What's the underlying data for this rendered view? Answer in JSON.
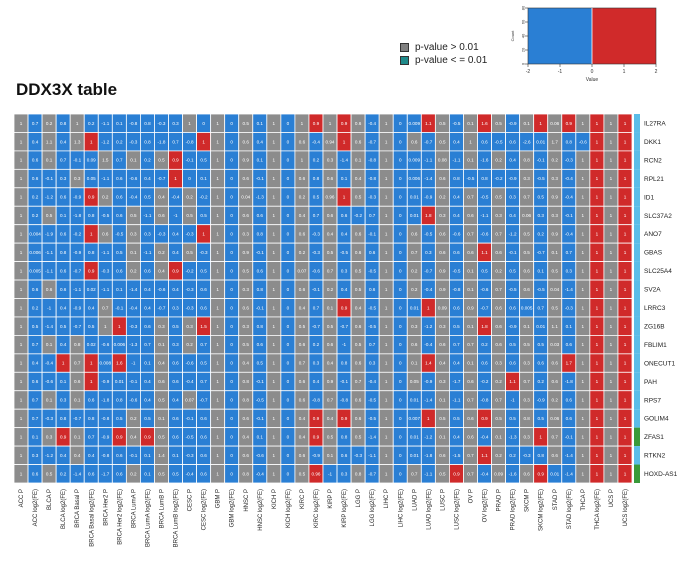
{
  "title": "DDX3X table",
  "legend": {
    "items": [
      {
        "label": "p-value > 0.01",
        "color": "#808080"
      },
      {
        "label": "p-value < = 0.01",
        "color": "#1f8a8a"
      }
    ]
  },
  "color_key": {
    "xlabel": "Value",
    "ylabel": "Count",
    "ticks": [
      "-2",
      "-1",
      "0",
      "1",
      "2"
    ],
    "yticks": [
      "0",
      "20",
      "40",
      "60",
      "80"
    ],
    "low_color": "#2a7fd4",
    "high_color": "#d02a2a"
  },
  "chart_data": {
    "type": "heatmap",
    "columns": [
      "ACC P",
      "ACC log2(FE)",
      "BLCA P",
      "BLCA log2(FE)",
      "BRCA Basal P",
      "BRCA Basal log2(FE)",
      "BRCA Her2 P",
      "BRCA Her2 log2(FE)",
      "BRCA LumA P",
      "BRCA LumA log2(FE)",
      "BRCA LumB P",
      "BRCA LumB log2(FE)",
      "CESC P",
      "CESC log2(FE)",
      "GBM P",
      "GBM log2(FE)",
      "HNSC P",
      "HNSC log2(FE)",
      "KICH P",
      "KICH log2(FE)",
      "KIRC P",
      "KIRC log2(FE)",
      "KIRP P",
      "KIRP log2(FE)",
      "LGG P",
      "LGG log2(FE)",
      "LIHC P",
      "LIHC log2(FE)",
      "LUAD P",
      "LUAD log2(FE)",
      "LUSC P",
      "LUSC log2(FE)",
      "OV P",
      "OV log2(FE)",
      "PRAD P",
      "PRAD log2(FE)",
      "SKCM P",
      "SKCM log2(FE)",
      "STAD P",
      "STAD log2(FE)",
      "THCA P",
      "THCA log2(FE)",
      "UCS P",
      "UCS log2(FE)"
    ],
    "rows": [
      "IL27RA",
      "DKK1",
      "RCN2",
      "RPL21",
      "ID1",
      "SLC37A2",
      "ANO7",
      "GBAS",
      "SLC25A4",
      "SV2A",
      "LRRC3",
      "ZG16B",
      "FBLIM1",
      "ONECUT1",
      "PAH",
      "RPS7",
      "GOLIM4",
      "ZFAS1",
      "RTKN2",
      "HOXD-AS1"
    ],
    "row_group_colors": [
      "#5bbde8",
      "#5bbde8",
      "#5bbde8",
      "#5bbde8",
      "#5bbde8",
      "#5bbde8",
      "#5bbde8",
      "#5bbde8",
      "#5bbde8",
      "#5bbde8",
      "#5bbde8",
      "#5bbde8",
      "#5bbde8",
      "#5bbde8",
      "#5bbde8",
      "#5bbde8",
      "#5bbde8",
      "#3a9a3a",
      "#5bbde8",
      "#3a9a3a"
    ],
    "cells": [
      [
        "1",
        "0.7",
        "0.2",
        "0.8",
        "1",
        "0.2",
        "-1.1",
        "0.1",
        "-0.8",
        "0.8",
        "-0.3",
        "0.3",
        "1",
        "0",
        "1",
        "0",
        "0.5",
        "0.1",
        "1",
        "0",
        "1",
        "0.9",
        "1",
        "0.9",
        "0.6",
        "-0.4",
        "1",
        "0",
        "0.009",
        "1.1",
        "0.5",
        "-0.5",
        "0.1",
        "1.6",
        "0.5",
        "-0.9",
        "0.1",
        "1",
        "0.06",
        "0.9",
        "1",
        "1",
        "1",
        "1"
      ],
      [
        "1",
        "0.4",
        "1.1",
        "0.4",
        "1.3",
        "1",
        "-1.2",
        "0.2",
        "-0.3",
        "0.8",
        "-1.8",
        "0.7",
        "-0.8",
        "1",
        "1",
        "0",
        "0.6",
        "0.4",
        "1",
        "0",
        "0.6",
        "-0.4",
        "0.94",
        "1",
        "0.6",
        "-0.7",
        "1",
        "0",
        "0.6",
        "-0.7",
        "0.5",
        "0.4",
        "1",
        "0.6",
        "-0.5",
        "0.6",
        "-2.6",
        "0.01",
        "1.7",
        "0.8",
        "-0.6",
        "1",
        "1",
        "1"
      ],
      [
        "1",
        "0.6",
        "0.1",
        "0.7",
        "-0.1",
        "0.09",
        "1.5",
        "0.7",
        "0.1",
        "0.2",
        "0.5",
        "0.9",
        "-0.1",
        "0.5",
        "1",
        "0",
        "0.9",
        "0.1",
        "1",
        "0",
        "1",
        "0.2",
        "0.3",
        "-1.4",
        "0.1",
        "-0.8",
        "1",
        "0",
        "0.009",
        "-1.1",
        "0.08",
        "-1.1",
        "0.1",
        "-1.6",
        "0.2",
        "0.4",
        "0.8",
        "-0.1",
        "0.2",
        "-0.3",
        "1",
        "1",
        "1",
        "1"
      ],
      [
        "1",
        "0.6",
        "-0.1",
        "0.3",
        "0.3",
        "0.05",
        "-1.1",
        "0.6",
        "-0.6",
        "0.4",
        "-0.7",
        "1",
        "0",
        "0.1",
        "1",
        "0",
        "0.6",
        "-0.1",
        "1",
        "0",
        "0.6",
        "0.8",
        "0.6",
        "0.1",
        "0.4",
        "-0.8",
        "1",
        "0",
        "0.006",
        "-1.4",
        "0.6",
        "0.8",
        "-0.5",
        "0.8",
        "-0.2",
        "-0.9",
        "0.3",
        "-0.5",
        "0.3",
        "-0.4",
        "1",
        "1",
        "1",
        "1"
      ],
      [
        "1",
        "0.2",
        "-1.2",
        "0.6",
        "-0.9",
        "0.9",
        "0.2",
        "0.6",
        "-0.4",
        "0.5",
        "0.4",
        "-0.4",
        "0.2",
        "-0.2",
        "1",
        "0",
        "0.04",
        "-1.3",
        "1",
        "0",
        "0.2",
        "0.5",
        "0.96",
        "1",
        "0.5",
        "-0.3",
        "1",
        "0",
        "0.01",
        "-0.9",
        "0.2",
        "0.4",
        "0.7",
        "-0.5",
        "0.5",
        "0.3",
        "0.7",
        "0.5",
        "0.9",
        "-0.4",
        "1",
        "1",
        "1",
        "1"
      ],
      [
        "1",
        "0.2",
        "0.5",
        "0.1",
        "-1.8",
        "0.8",
        "-0.5",
        "0.6",
        "0.5",
        "-1.1",
        "0.6",
        "-1",
        "0.5",
        "0.5",
        "1",
        "0",
        "0.6",
        "0.6",
        "1",
        "0",
        "0.4",
        "0.7",
        "0.6",
        "0.6",
        "-0.2",
        "0.7",
        "1",
        "0",
        "0.01",
        "1.8",
        "0.3",
        "0.4",
        "0.6",
        "-1.1",
        "0.3",
        "0.4",
        "0.06",
        "0.3",
        "0.3",
        "-0.1",
        "1",
        "1",
        "1",
        "1"
      ],
      [
        "1",
        "0.004",
        "-1.9",
        "0.6",
        "-0.2",
        "1",
        "0.6",
        "-0.5",
        "0.3",
        "0.3",
        "-0.3",
        "0.4",
        "-0.3",
        "1",
        "1",
        "0",
        "0.3",
        "0.8",
        "1",
        "0",
        "0.6",
        "-0.3",
        "0.4",
        "0.4",
        "0.6",
        "-0.1",
        "1",
        "0",
        "0.6",
        "-0.5",
        "0.6",
        "-0.6",
        "0.7",
        "-0.6",
        "0.7",
        "-1.2",
        "0.5",
        "0.2",
        "0.9",
        "-0.4",
        "1",
        "1",
        "1",
        "1"
      ],
      [
        "1",
        "0.006",
        "-1.1",
        "0.8",
        "-0.9",
        "0.8",
        "-1.1",
        "0.5",
        "0.1",
        "-1.1",
        "0.2",
        "0.4",
        "0.5",
        "-0.3",
        "1",
        "0",
        "0.9",
        "-0.1",
        "1",
        "0",
        "0.2",
        "-0.3",
        "0.5",
        "-0.5",
        "0.6",
        "0.6",
        "1",
        "0",
        "0.7",
        "0.3",
        "0.6",
        "0.6",
        "0.6",
        "1.1",
        "0.6",
        "-0.1",
        "0.5",
        "-0.7",
        "0.1",
        "0.7",
        "1",
        "1",
        "1",
        "1"
      ],
      [
        "1",
        "0.005",
        "-1.1",
        "0.6",
        "-0.7",
        "0.9",
        "-0.3",
        "0.6",
        "0.2",
        "0.6",
        "0.4",
        "0.9",
        "-0.2",
        "0.5",
        "1",
        "0",
        "0.5",
        "0.6",
        "1",
        "0",
        "0.07",
        "-0.6",
        "0.7",
        "0.3",
        "0.5",
        "-0.5",
        "1",
        "0",
        "0.2",
        "-0.7",
        "0.9",
        "-0.5",
        "0.1",
        "0.5",
        "0.2",
        "0.5",
        "0.6",
        "0.1",
        "0.5",
        "0.3",
        "1",
        "1",
        "1",
        "1"
      ],
      [
        "1",
        "0.6",
        "0.6",
        "0.6",
        "-1.1",
        "0.02",
        "-1.1",
        "0.1",
        "-1.4",
        "0.4",
        "-0.6",
        "0.4",
        "-0.3",
        "0.6",
        "1",
        "0",
        "0.3",
        "0.8",
        "1",
        "0",
        "0.6",
        "-0.1",
        "0.2",
        "0.4",
        "0.5",
        "0.6",
        "1",
        "0",
        "0.2",
        "-0.4",
        "0.9",
        "-0.8",
        "0.1",
        "-0.6",
        "0.7",
        "-0.5",
        "0.6",
        "-0.5",
        "0.04",
        "-1.4",
        "1",
        "1",
        "1",
        "1"
      ],
      [
        "1",
        "0.2",
        "-1",
        "0.4",
        "-0.9",
        "0.4",
        "0.7",
        "-0.1",
        "-0.4",
        "0.4",
        "-0.7",
        "0.3",
        "-0.3",
        "0.6",
        "1",
        "0",
        "0.6",
        "-0.1",
        "1",
        "0",
        "0.4",
        "0.7",
        "0.1",
        "0.9",
        "0.4",
        "-0.5",
        "1",
        "0",
        "0.01",
        "1",
        "0.09",
        "0.6",
        "0.9",
        "-0.7",
        "0.6",
        "0.6",
        "0.005",
        "0.7",
        "0.5",
        "-0.3",
        "1",
        "1",
        "1",
        "1"
      ],
      [
        "1",
        "0.5",
        "-1.4",
        "0.5",
        "-0.7",
        "0.5",
        "1",
        "1",
        "-0.3",
        "0.6",
        "0.3",
        "0.5",
        "0.3",
        "1.5",
        "1",
        "0",
        "0.3",
        "0.8",
        "1",
        "0",
        "0.5",
        "-0.7",
        "0.5",
        "-0.7",
        "0.6",
        "-0.5",
        "1",
        "0",
        "0.3",
        "-1.2",
        "0.3",
        "0.5",
        "0.1",
        "1.8",
        "0.6",
        "-0.9",
        "0.1",
        "0.01",
        "1.1",
        "0.1",
        "1",
        "1",
        "1",
        "1"
      ],
      [
        "1",
        "0.7",
        "0.1",
        "0.4",
        "0.8",
        "0.02",
        "-0.6",
        "0.006",
        "-1.3",
        "0.7",
        "0.1",
        "0.3",
        "0.2",
        "0.7",
        "1",
        "0",
        "0.5",
        "0.6",
        "1",
        "0",
        "0.6",
        "0.2",
        "0.6",
        "-1",
        "0.5",
        "0.7",
        "1",
        "0",
        "0.6",
        "-0.4",
        "0.6",
        "0.7",
        "0.7",
        "0.2",
        "0.6",
        "0.5",
        "0.5",
        "0.5",
        "0.03",
        "0.6",
        "1",
        "1",
        "1",
        "1"
      ],
      [
        "1",
        "0.4",
        "-0.4",
        "1",
        "0.7",
        "1",
        "0.008",
        "1.6",
        "-1",
        "0.1",
        "0.4",
        "0.6",
        "-0.6",
        "0.5",
        "1",
        "0",
        "0.4",
        "0.5",
        "1",
        "0",
        "0.7",
        "0.3",
        "0.4",
        "0.8",
        "0.6",
        "0.3",
        "1",
        "0",
        "0.1",
        "1.4",
        "0.4",
        "0.4",
        "0.1",
        "0.6",
        "0.3",
        "0.6",
        "0.3",
        "0.6",
        "0.6",
        "1.7",
        "1",
        "1",
        "1",
        "1"
      ],
      [
        "1",
        "0.6",
        "-0.6",
        "0.1",
        "0.6",
        "1",
        "-0.9",
        "0.01",
        "-0.1",
        "0.4",
        "0.6",
        "0.6",
        "-0.4",
        "0.7",
        "1",
        "0",
        "0.8",
        "-0.1",
        "1",
        "0",
        "0.6",
        "0.4",
        "0.9",
        "-0.1",
        "0.7",
        "-0.4",
        "1",
        "0",
        "0.05",
        "-0.9",
        "0.3",
        "-1.7",
        "0.6",
        "-0.2",
        "0.2",
        "1.1",
        "0.7",
        "0.2",
        "0.6",
        "-1.8",
        "1",
        "1",
        "1",
        "1"
      ],
      [
        "1",
        "0.7",
        "0.1",
        "0.3",
        "0.1",
        "0.6",
        "-1.8",
        "0.8",
        "-0.6",
        "0.4",
        "0.5",
        "0.4",
        "0.07",
        "-0.7",
        "1",
        "0",
        "0.8",
        "-0.5",
        "1",
        "0",
        "0.6",
        "-0.8",
        "0.7",
        "-0.8",
        "0.6",
        "-0.5",
        "1",
        "0",
        "0.01",
        "-1.4",
        "0.1",
        "-1.1",
        "0.7",
        "-0.8",
        "0.7",
        "-1",
        "0.3",
        "-0.9",
        "0.2",
        "0.6",
        "1",
        "1",
        "1",
        "1"
      ],
      [
        "1",
        "0.7",
        "-0.3",
        "0.8",
        "-0.7",
        "0.8",
        "-0.8",
        "0.5",
        "0.2",
        "0.5",
        "0.1",
        "0.6",
        "-0.1",
        "0.6",
        "1",
        "0",
        "0.6",
        "-0.1",
        "1",
        "0",
        "0.4",
        "0.9",
        "0.4",
        "0.9",
        "0.6",
        "-0.5",
        "1",
        "0",
        "0.007",
        "1",
        "0.5",
        "0.5",
        "0.6",
        "0.9",
        "0.5",
        "0.5",
        "0.8",
        "0.5",
        "0.06",
        "0.6",
        "1",
        "1",
        "1",
        "1"
      ],
      [
        "1",
        "0.1",
        "0.3",
        "0.9",
        "0.1",
        "0.7",
        "-0.9",
        "0.9",
        "0.4",
        "0.9",
        "0.5",
        "0.6",
        "-0.5",
        "0.6",
        "1",
        "0",
        "0.4",
        "0.1",
        "1",
        "0",
        "0.4",
        "0.9",
        "0.5",
        "0.8",
        "0.5",
        "-1.4",
        "1",
        "0",
        "0.01",
        "-1.2",
        "0.1",
        "0.4",
        "0.6",
        "-0.4",
        "0.1",
        "-1.3",
        "0.3",
        "1",
        "0.7",
        "-0.1",
        "1",
        "1",
        "1",
        "1"
      ],
      [
        "1",
        "0.3",
        "-1.2",
        "0.4",
        "0.4",
        "0.4",
        "-0.8",
        "0.6",
        "-0.1",
        "0.1",
        "1.4",
        "0.1",
        "-0.3",
        "0.6",
        "1",
        "0",
        "0.6",
        "-0.6",
        "1",
        "0",
        "0.6",
        "-0.9",
        "0.1",
        "0.6",
        "-0.3",
        "-1.1",
        "1",
        "0",
        "0.01",
        "-1.8",
        "0.6",
        "-1.5",
        "0.7",
        "1.1",
        "0.2",
        "0.2",
        "-0.3",
        "0.8",
        "0.6",
        "-1.4",
        "1",
        "1",
        "1",
        "1"
      ],
      [
        "1",
        "0.6",
        "0.5",
        "0.2",
        "-1.4",
        "0.6",
        "-1.7",
        "0.6",
        "0.2",
        "0.1",
        "0.5",
        "0.5",
        "-0.4",
        "0.6",
        "1",
        "0",
        "0.8",
        "-0.4",
        "1",
        "0",
        "0.5",
        "0.96",
        "-1",
        "0.3",
        "0.8",
        "-0.7",
        "1",
        "0",
        "0.7",
        "-1.1",
        "0.5",
        "0.9",
        "0.7",
        "-0.4",
        "0.09",
        "-1.6",
        "0.6",
        "0.9",
        "0.01",
        "-1.4",
        "1",
        "1",
        "1",
        "1"
      ]
    ],
    "cell_colors": [
      "grey",
      "blue",
      "red"
    ],
    "color_rule": "P columns grey when value > 0.01 else blue; log2(FE) columns colored by sign/magnitude"
  }
}
